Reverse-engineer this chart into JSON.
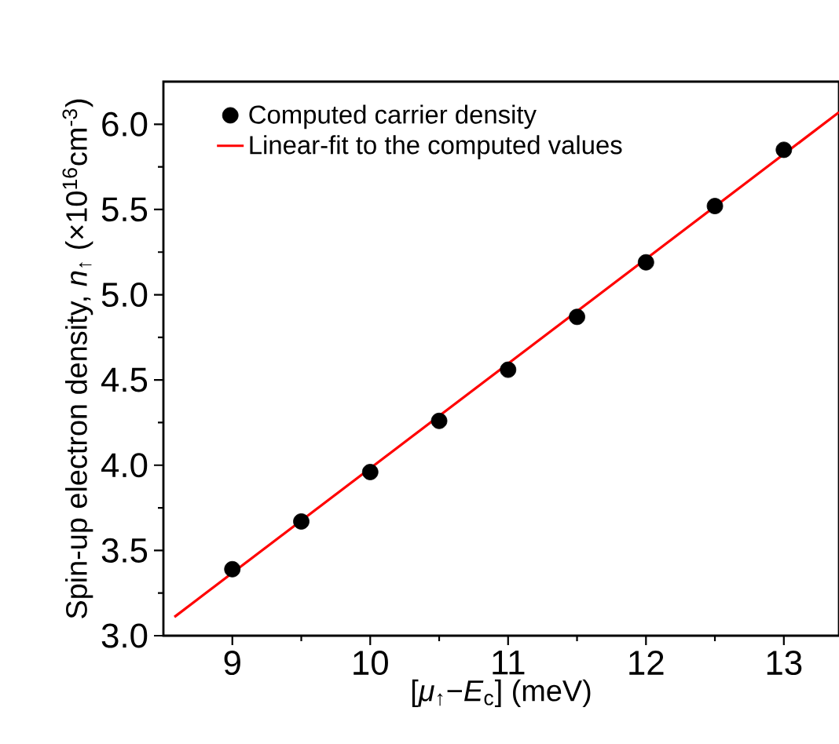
{
  "chart_data": {
    "type": "scatter",
    "xlabel": "[*μ*$_{↑}$−*E*$_{c}$] (meV)",
    "ylabel": "Spin-up electron density, *n*$_{↑}$ (×10$^{16}$cm$^{-3}$)",
    "x": [
      9,
      9.5,
      10,
      10.5,
      11,
      11.5,
      12,
      12.5,
      13
    ],
    "series": [
      {
        "name": "Computed carrier density",
        "color": "#000000",
        "values": [
          3.39,
          3.67,
          3.96,
          4.26,
          4.56,
          4.87,
          5.19,
          5.52,
          5.85
        ]
      },
      {
        "name": "Linear-fit to the computed values",
        "type": "line",
        "color": "#ff0000",
        "line_style": "solid",
        "x": [
          8.58,
          13.4
        ],
        "values": [
          3.11,
          6.07
        ]
      }
    ],
    "xlim": [
      8.5,
      13.4
    ],
    "ylim": [
      3.0,
      6.25
    ],
    "xticks": [
      9,
      10,
      11,
      12,
      13
    ],
    "yticks": [
      {
        "value": 3.0,
        "label": "3.0"
      },
      {
        "value": 3.5,
        "label": "3.5"
      },
      {
        "value": 4.0,
        "label": "4.0"
      },
      {
        "value": 4.5,
        "label": "4.5"
      },
      {
        "value": 5.0,
        "label": "5.0"
      },
      {
        "value": 5.5,
        "label": "5.5"
      },
      {
        "value": 6.0,
        "label": "6.0"
      }
    ],
    "legend": "top left"
  }
}
